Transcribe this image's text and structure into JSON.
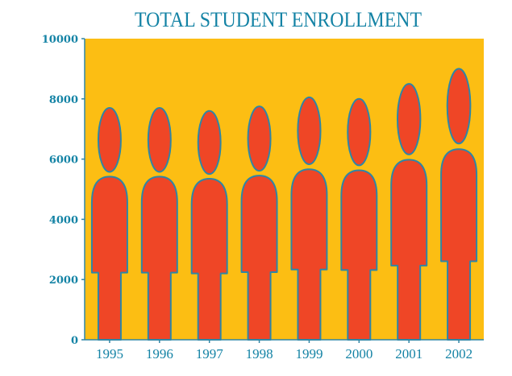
{
  "chart_data": {
    "type": "bar",
    "title": "TOTAL STUDENT ENROLLMENT",
    "categories": [
      "1995",
      "1996",
      "1997",
      "1998",
      "1999",
      "2000",
      "2001",
      "2002"
    ],
    "values": [
      7700,
      7700,
      7600,
      7750,
      8050,
      8000,
      8500,
      9000
    ],
    "xlabel": "",
    "ylabel": "",
    "ylim": [
      0,
      10000
    ],
    "yticks": [
      "0",
      "2000",
      "4000",
      "6000",
      "8000",
      "10000"
    ],
    "grid": false,
    "legend": "none"
  },
  "colors": {
    "plot_background": "#fcbe13",
    "figure_fill": "#ef4626",
    "figure_outline": "#2f86a6",
    "text": "#1483a5",
    "axis": "#2f86a6"
  }
}
